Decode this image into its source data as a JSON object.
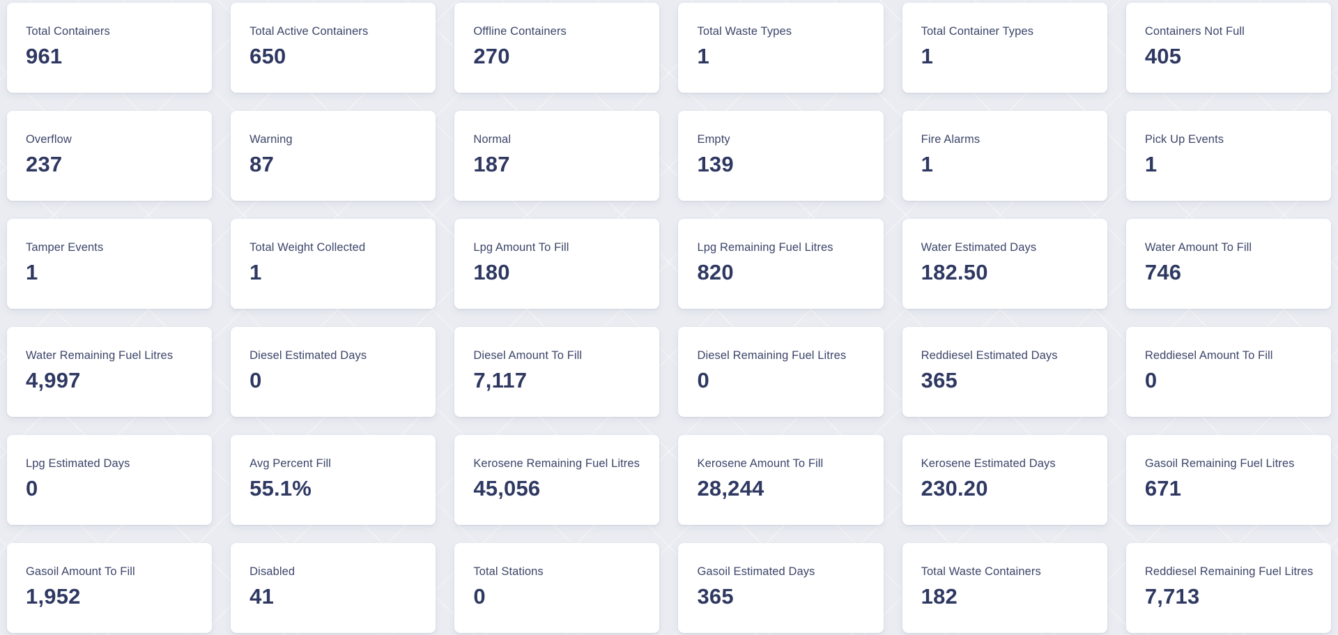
{
  "theme": {
    "page_background": "#eaecf2",
    "card_background": "#ffffff",
    "label_color": "#3c4569",
    "value_color": "#2e3861"
  },
  "cards": [
    {
      "label": "Total Containers",
      "value": "961"
    },
    {
      "label": "Total Active Containers",
      "value": "650"
    },
    {
      "label": "Offline Containers",
      "value": "270"
    },
    {
      "label": "Total Waste Types",
      "value": "1"
    },
    {
      "label": "Total Container Types",
      "value": "1"
    },
    {
      "label": "Containers Not Full",
      "value": "405"
    },
    {
      "label": "Overflow",
      "value": "237"
    },
    {
      "label": "Warning",
      "value": "87"
    },
    {
      "label": "Normal",
      "value": "187"
    },
    {
      "label": "Empty",
      "value": "139"
    },
    {
      "label": "Fire Alarms",
      "value": "1"
    },
    {
      "label": "Pick Up Events",
      "value": "1"
    },
    {
      "label": "Tamper Events",
      "value": "1"
    },
    {
      "label": "Total Weight Collected",
      "value": "1"
    },
    {
      "label": "Lpg Amount To Fill",
      "value": "180"
    },
    {
      "label": "Lpg Remaining Fuel Litres",
      "value": "820"
    },
    {
      "label": "Water Estimated Days",
      "value": "182.50"
    },
    {
      "label": "Water Amount To Fill",
      "value": "746"
    },
    {
      "label": "Water Remaining Fuel Litres",
      "value": "4,997"
    },
    {
      "label": "Diesel Estimated Days",
      "value": "0"
    },
    {
      "label": "Diesel Amount To Fill",
      "value": "7,117"
    },
    {
      "label": "Diesel Remaining Fuel Litres",
      "value": "0"
    },
    {
      "label": "Reddiesel Estimated Days",
      "value": "365"
    },
    {
      "label": "Reddiesel Amount To Fill",
      "value": "0"
    },
    {
      "label": "Lpg Estimated Days",
      "value": "0"
    },
    {
      "label": "Avg Percent Fill",
      "value": "55.1%"
    },
    {
      "label": "Kerosene Remaining Fuel Litres",
      "value": "45,056"
    },
    {
      "label": "Kerosene Amount To Fill",
      "value": "28,244"
    },
    {
      "label": "Kerosene Estimated Days",
      "value": "230.20"
    },
    {
      "label": "Gasoil Remaining Fuel Litres",
      "value": "671"
    },
    {
      "label": "Gasoil Amount To Fill",
      "value": "1,952"
    },
    {
      "label": "Disabled",
      "value": "41"
    },
    {
      "label": "Total Stations",
      "value": "0"
    },
    {
      "label": "Gasoil Estimated Days",
      "value": "365"
    },
    {
      "label": "Total Waste Containers",
      "value": "182"
    },
    {
      "label": "Reddiesel Remaining Fuel Litres",
      "value": "7,713"
    }
  ]
}
